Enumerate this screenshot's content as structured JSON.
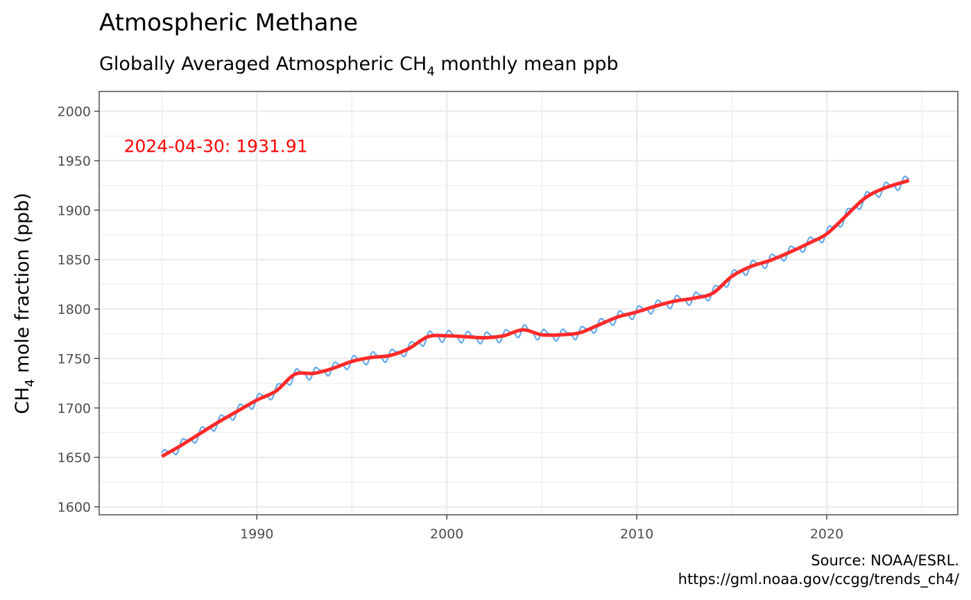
{
  "chart_data": {
    "type": "line",
    "title": "Atmospheric Methane",
    "subtitle_before": "Globally Averaged Atmospheric CH",
    "subtitle_sub": "4",
    "subtitle_after": " monthly mean ppb",
    "ylabel_before": "CH",
    "ylabel_sub": "4",
    "ylabel_after": " mole fraction (ppb)",
    "xlabel": "",
    "xlim": [
      1981.7,
      2026.9
    ],
    "ylim": [
      1592,
      2020
    ],
    "x_ticks": [
      1990,
      2000,
      2010,
      2020
    ],
    "x_tick_labels": [
      "1990",
      "2000",
      "2010",
      "2020"
    ],
    "y_ticks": [
      1600,
      1650,
      1700,
      1750,
      1800,
      1850,
      1900,
      1950,
      2000
    ],
    "y_tick_labels": [
      "1600",
      "1650",
      "1700",
      "1750",
      "1800",
      "1850",
      "1900",
      "1950",
      "2000"
    ],
    "grid": true,
    "legend": "none",
    "seasonal_amplitude_ppb": 6,
    "series": [
      {
        "role": "monthly",
        "color": "#64a9ea",
        "x": [
          1985.0,
          1986.0,
          1987.0,
          1988.0,
          1989.0,
          1990.0,
          1991.0,
          1992.0,
          1993.0,
          1994.0,
          1995.0,
          1996.0,
          1997.0,
          1998.0,
          1999.0,
          2000.0,
          2001.0,
          2002.0,
          2003.0,
          2004.0,
          2005.0,
          2006.0,
          2007.0,
          2008.0,
          2009.0,
          2010.0,
          2011.0,
          2012.0,
          2013.0,
          2014.0,
          2015.0,
          2016.0,
          2017.0,
          2018.0,
          2019.0,
          2020.0,
          2021.0,
          2022.0,
          2023.0,
          2024.33
        ],
        "y": [
          1651,
          1662,
          1674,
          1686,
          1697,
          1708,
          1717,
          1734,
          1735,
          1740,
          1747,
          1751,
          1753,
          1760,
          1772,
          1773,
          1772,
          1771,
          1773,
          1779,
          1774,
          1774,
          1776,
          1784,
          1792,
          1797,
          1803,
          1808,
          1811,
          1816,
          1833,
          1843,
          1849,
          1857,
          1866,
          1876,
          1894,
          1912,
          1922,
          1930
        ]
      },
      {
        "role": "trend",
        "color": "#ff2a2a",
        "x": [
          1985.0,
          1986.0,
          1987.0,
          1988.0,
          1989.0,
          1990.0,
          1991.0,
          1992.0,
          1993.0,
          1994.0,
          1995.0,
          1996.0,
          1997.0,
          1998.0,
          1999.0,
          2000.0,
          2001.0,
          2002.0,
          2003.0,
          2004.0,
          2005.0,
          2006.0,
          2007.0,
          2008.0,
          2009.0,
          2010.0,
          2011.0,
          2012.0,
          2013.0,
          2014.0,
          2015.0,
          2016.0,
          2017.0,
          2018.0,
          2019.0,
          2020.0,
          2021.0,
          2022.0,
          2023.0,
          2024.33
        ],
        "y": [
          1651,
          1662,
          1674,
          1686,
          1697,
          1708,
          1717,
          1734,
          1735,
          1740,
          1747,
          1751,
          1753,
          1760,
          1772,
          1773,
          1772,
          1771,
          1773,
          1779,
          1774,
          1774,
          1776,
          1784,
          1792,
          1797,
          1803,
          1808,
          1811,
          1816,
          1833,
          1843,
          1849,
          1857,
          1866,
          1876,
          1894,
          1912,
          1922,
          1930
        ]
      }
    ],
    "annotation": {
      "text": "2024-04-30: 1931.91",
      "x": 1983.0,
      "y": 1965,
      "color": "#ff0000"
    },
    "caption_line1": "Source: NOAA/ESRL.",
    "caption_line2": "https://gml.noaa.gov/ccgg/trends_ch4/"
  }
}
